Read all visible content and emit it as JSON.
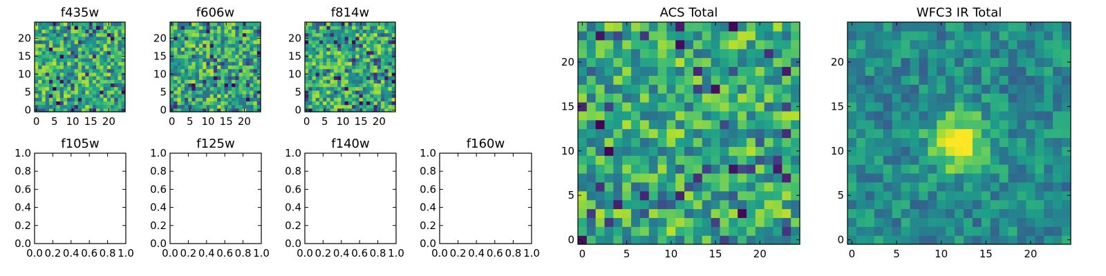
{
  "chart_data": [
    {
      "type": "heatmap",
      "title": "f435w",
      "x_ticks": [
        0,
        5,
        10,
        15,
        20
      ],
      "y_ticks": [
        0,
        5,
        10,
        15,
        20
      ],
      "xlim": [
        -0.5,
        24.5
      ],
      "ylim": [
        -0.5,
        24.5
      ],
      "grid_size": 25,
      "colormap": "viridis",
      "seed": 11
    },
    {
      "type": "heatmap",
      "title": "f606w",
      "x_ticks": [
        0,
        5,
        10,
        15,
        20
      ],
      "y_ticks": [
        0,
        5,
        10,
        15,
        20
      ],
      "xlim": [
        -0.5,
        24.5
      ],
      "ylim": [
        -0.5,
        24.5
      ],
      "grid_size": 25,
      "colormap": "viridis",
      "seed": 23
    },
    {
      "type": "heatmap",
      "title": "f814w",
      "x_ticks": [
        0,
        5,
        10,
        15,
        20
      ],
      "y_ticks": [
        0,
        5,
        10,
        15,
        20
      ],
      "xlim": [
        -0.5,
        24.5
      ],
      "ylim": [
        -0.5,
        24.5
      ],
      "grid_size": 25,
      "colormap": "viridis",
      "seed": 37
    },
    {
      "type": "empty",
      "title": "f105w",
      "x_ticks": [
        "0.0",
        "0.2",
        "0.4",
        "0.6",
        "0.8",
        "1.0"
      ],
      "y_ticks": [
        "0.0",
        "0.2",
        "0.4",
        "0.6",
        "0.8",
        "1.0"
      ],
      "xlim": [
        0,
        1
      ],
      "ylim": [
        0,
        1
      ]
    },
    {
      "type": "empty",
      "title": "f125w",
      "x_ticks": [
        "0.0",
        "0.2",
        "0.4",
        "0.6",
        "0.8",
        "1.0"
      ],
      "y_ticks": [
        "0.0",
        "0.2",
        "0.4",
        "0.6",
        "0.8",
        "1.0"
      ],
      "xlim": [
        0,
        1
      ],
      "ylim": [
        0,
        1
      ]
    },
    {
      "type": "empty",
      "title": "f140w",
      "x_ticks": [
        "0.0",
        "0.2",
        "0.4",
        "0.6",
        "0.8",
        "1.0"
      ],
      "y_ticks": [
        "0.0",
        "0.2",
        "0.4",
        "0.6",
        "0.8",
        "1.0"
      ],
      "xlim": [
        0,
        1
      ],
      "ylim": [
        0,
        1
      ]
    },
    {
      "type": "empty",
      "title": "f160w",
      "x_ticks": [
        "0.0",
        "0.2",
        "0.4",
        "0.6",
        "0.8",
        "1.0"
      ],
      "y_ticks": [
        "0.0",
        "0.2",
        "0.4",
        "0.6",
        "0.8",
        "1.0"
      ],
      "xlim": [
        0,
        1
      ],
      "ylim": [
        0,
        1
      ]
    },
    {
      "type": "heatmap",
      "title": "ACS Total",
      "x_ticks": [
        0,
        5,
        10,
        15,
        20
      ],
      "y_ticks": [
        0,
        5,
        10,
        15,
        20
      ],
      "xlim": [
        -0.5,
        24.5
      ],
      "ylim": [
        -0.5,
        24.5
      ],
      "grid_size": 25,
      "colormap": "viridis",
      "seed": 53
    },
    {
      "type": "heatmap",
      "title": "WFC3 IR Total",
      "x_ticks": [
        0,
        5,
        10,
        15,
        20
      ],
      "y_ticks": [
        0,
        5,
        10,
        15,
        20
      ],
      "xlim": [
        -0.5,
        24.5
      ],
      "ylim": [
        -0.5,
        24.5
      ],
      "grid_size": 25,
      "colormap": "viridis",
      "seed": 71,
      "bright_blob_center": [
        12,
        11
      ]
    }
  ]
}
